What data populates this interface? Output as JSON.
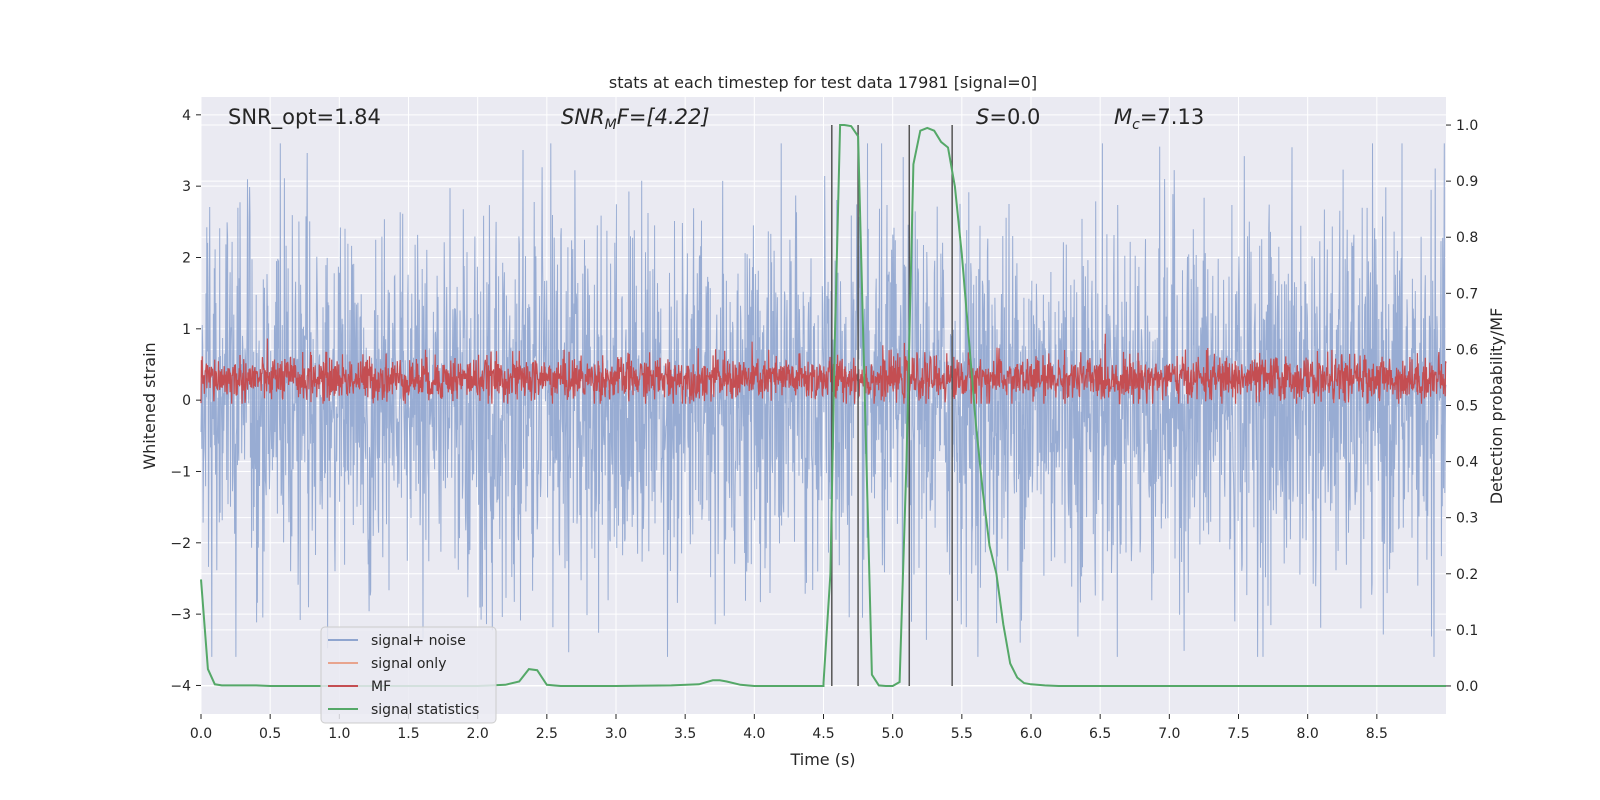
{
  "chart_data": {
    "type": "line",
    "title": "stats at each timestep for test data 17981 [signal=0]",
    "xlabel": "Time (s)",
    "ylabel_left": "Whitened strain",
    "ylabel_right": "Detection probability/MF",
    "xlim": [
      0.0,
      9.0
    ],
    "ylim_left": [
      -4.4,
      4.25
    ],
    "ylim_right": [
      -0.05,
      1.05
    ],
    "xticks": [
      0.0,
      0.5,
      1.0,
      1.5,
      2.0,
      2.5,
      3.0,
      3.5,
      4.0,
      4.5,
      5.0,
      5.5,
      6.0,
      6.5,
      7.0,
      7.5,
      8.0,
      8.5
    ],
    "xtick_labels": [
      "0.0",
      "0.5",
      "1.0",
      "1.5",
      "2.0",
      "2.5",
      "3.0",
      "3.5",
      "4.0",
      "4.5",
      "5.0",
      "5.5",
      "6.0",
      "6.5",
      "7.0",
      "7.5",
      "8.0",
      "8.5"
    ],
    "yticks_left": [
      -4,
      -3,
      -2,
      -1,
      0,
      1,
      2,
      3,
      4
    ],
    "ytick_labels_left": [
      "−4",
      "−3",
      "−2",
      "−1",
      "0",
      "1",
      "2",
      "3",
      "4"
    ],
    "yticks_right": [
      0.0,
      0.1,
      0.2,
      0.3,
      0.4,
      0.5,
      0.6,
      0.7,
      0.8,
      0.9,
      1.0
    ],
    "ytick_labels_right": [
      "0.0",
      "0.1",
      "0.2",
      "0.3",
      "0.4",
      "0.5",
      "0.6",
      "0.7",
      "0.8",
      "0.9",
      "1.0"
    ],
    "grid": true,
    "legend_position": "lower-left",
    "annotations": {
      "snr_opt": "SNR_opt=1.84",
      "snr_mf_prefix": "SNR",
      "snr_mf_sub": "M",
      "snr_mf_rest": "F=[4.22]",
      "s_var": "S",
      "s_value": "=0.0",
      "mc_var": "M",
      "mc_sub": "c",
      "mc_value": "=7.13"
    },
    "series": [
      {
        "name": "signal+ noise",
        "color": "#8fa5cf",
        "axis": "left",
        "description": "whitened noise, amplitude mostly within about +/-2.5, peaks near 3.6 and -3.6",
        "amplitude_typical": 1.3,
        "amplitude_max": 3.6
      },
      {
        "name": "signal only",
        "color": "#e8a48e",
        "axis": "left",
        "values": []
      },
      {
        "name": "MF",
        "color": "#c44e52",
        "axis": "left",
        "description": "matched filter output fluctuating around 0.3 in strain units",
        "center": 0.3,
        "amplitude": 0.35
      },
      {
        "name": "signal statistics",
        "color": "#55a868",
        "axis": "right",
        "x": [
          0.0,
          0.05,
          0.1,
          0.15,
          0.2,
          0.3,
          0.4,
          0.5,
          1.0,
          1.5,
          2.0,
          2.2,
          2.3,
          2.37,
          2.43,
          2.5,
          2.6,
          3.0,
          3.4,
          3.6,
          3.7,
          3.75,
          3.8,
          3.9,
          4.0,
          4.5,
          4.5,
          4.55,
          4.58,
          4.62,
          4.65,
          4.7,
          4.75,
          4.8,
          4.85,
          4.9,
          4.95,
          5.0,
          5.05,
          5.1,
          5.15,
          5.2,
          5.25,
          5.3,
          5.35,
          5.4,
          5.45,
          5.5,
          5.55,
          5.6,
          5.65,
          5.7,
          5.75,
          5.8,
          5.85,
          5.9,
          5.95,
          6.0,
          6.1,
          6.2,
          6.5,
          7.0,
          8.0,
          9.0
        ],
        "values": [
          0.19,
          0.03,
          0.003,
          0.001,
          0.001,
          0.001,
          0.001,
          0.0,
          0.0,
          0.0,
          0.0,
          0.002,
          0.008,
          0.03,
          0.028,
          0.002,
          0.0,
          0.0,
          0.001,
          0.003,
          0.01,
          0.01,
          0.008,
          0.002,
          0.0,
          0.0,
          0.005,
          0.2,
          0.6,
          1.0,
          1.0,
          0.998,
          0.98,
          0.5,
          0.02,
          0.001,
          0.0,
          0.0,
          0.007,
          0.4,
          0.93,
          0.99,
          0.995,
          0.99,
          0.97,
          0.96,
          0.89,
          0.77,
          0.62,
          0.47,
          0.35,
          0.25,
          0.2,
          0.11,
          0.04,
          0.015,
          0.005,
          0.003,
          0.001,
          0.0,
          0.0,
          0.0,
          0.0,
          0.0
        ]
      }
    ],
    "vertical_lines_x": [
      4.56,
      4.75,
      5.12,
      5.43
    ],
    "vertical_line_color": "#555555"
  }
}
